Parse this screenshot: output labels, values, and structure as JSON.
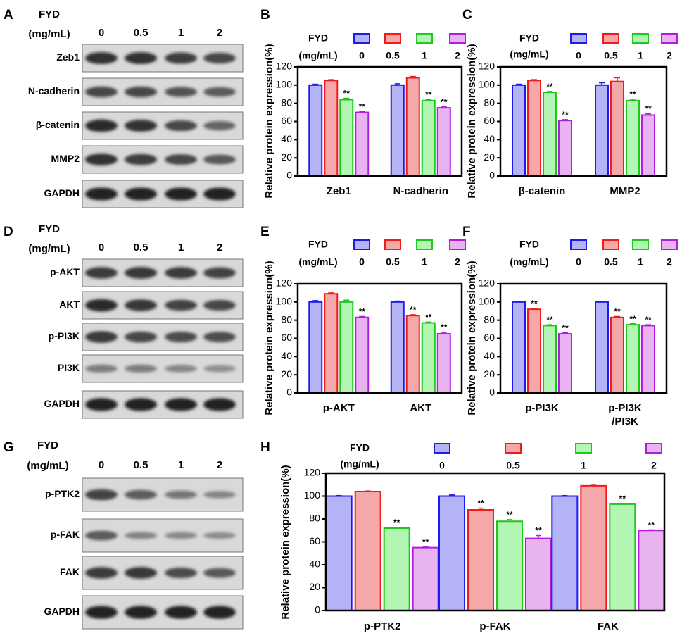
{
  "colors": {
    "series_fill": [
      "#b3b3f5",
      "#f5a8a8",
      "#b3f5b3",
      "#e8b3f0"
    ],
    "series_stroke": [
      "#1c1cf0",
      "#f01c1c",
      "#1cc81c",
      "#b01ce0"
    ]
  },
  "blot_panels": [
    {
      "letter": "A",
      "header": [
        "FYD",
        "(mg/mL)"
      ],
      "doses": [
        "0",
        "0.5",
        "1",
        "2"
      ],
      "rows": [
        {
          "label": "Zeb1",
          "bands": [
            0.85,
            0.85,
            0.78,
            0.72
          ]
        },
        {
          "label": "N-cadherin",
          "bands": [
            0.72,
            0.72,
            0.65,
            0.6
          ]
        },
        {
          "label": "β-catenin",
          "bands": [
            0.9,
            0.85,
            0.72,
            0.55
          ]
        },
        {
          "label": "MMP2",
          "bands": [
            0.85,
            0.78,
            0.72,
            0.62
          ]
        },
        {
          "label": "GAPDH",
          "bands": [
            0.95,
            0.95,
            0.95,
            0.95
          ]
        }
      ]
    },
    {
      "letter": "D",
      "header": [
        "FYD",
        "(mg/mL)"
      ],
      "doses": [
        "0",
        "0.5",
        "1",
        "2"
      ],
      "rows": [
        {
          "label": "p-AKT",
          "bands": [
            0.8,
            0.82,
            0.8,
            0.75
          ]
        },
        {
          "label": "AKT",
          "bands": [
            0.9,
            0.82,
            0.75,
            0.72
          ]
        },
        {
          "label": "p-PI3K",
          "bands": [
            0.8,
            0.72,
            0.7,
            0.68
          ]
        },
        {
          "label": "PI3K",
          "bands": [
            0.4,
            0.4,
            0.35,
            0.3
          ]
        },
        {
          "label": "GAPDH",
          "bands": [
            0.95,
            0.95,
            0.95,
            0.95
          ]
        }
      ]
    },
    {
      "letter": "G",
      "header": [
        "FYD",
        "(mg/mL)"
      ],
      "doses": [
        "0",
        "0.5",
        "1",
        "2"
      ],
      "rows": [
        {
          "label": "p-PTK2",
          "bands": [
            0.75,
            0.6,
            0.45,
            0.35
          ]
        },
        {
          "label": "p-FAK",
          "bands": [
            0.6,
            0.35,
            0.32,
            0.3
          ]
        },
        {
          "label": "FAK",
          "bands": [
            0.8,
            0.82,
            0.7,
            0.62
          ]
        },
        {
          "label": "GAPDH",
          "bands": [
            0.95,
            0.95,
            0.95,
            0.95
          ]
        }
      ]
    }
  ],
  "chart_data": [
    {
      "letter": "B",
      "type": "bar",
      "ylabel": "Relative protein expression(%)",
      "ylim": [
        0,
        120
      ],
      "yticks": [
        0,
        20,
        40,
        60,
        80,
        100,
        120
      ],
      "legend_title": [
        "FYD",
        "(mg/mL)"
      ],
      "series_names": [
        "0",
        "0.5",
        "1",
        "2"
      ],
      "groups": [
        {
          "labels": [
            "Zeb1"
          ],
          "values": [
            100,
            105,
            84,
            70
          ],
          "errors": [
            1,
            1,
            1.5,
            1
          ],
          "sig": [
            "",
            "",
            "**",
            "**"
          ]
        },
        {
          "labels": [
            "N-cadherin"
          ],
          "values": [
            100,
            108,
            83,
            75
          ],
          "errors": [
            1.5,
            1.5,
            1,
            1
          ],
          "sig": [
            "",
            "",
            "**",
            "**"
          ]
        }
      ]
    },
    {
      "letter": "C",
      "type": "bar",
      "ylabel": "Relative protein expression(%)",
      "ylim": [
        0,
        120
      ],
      "yticks": [
        0,
        20,
        40,
        60,
        80,
        100,
        120
      ],
      "legend_title": [
        "FYD",
        "(mg/mL)"
      ],
      "series_names": [
        "0",
        "0.5",
        "1",
        "2"
      ],
      "groups": [
        {
          "labels": [
            "β-catenin"
          ],
          "values": [
            100,
            105,
            92,
            61
          ],
          "errors": [
            1,
            1,
            1,
            1
          ],
          "sig": [
            "",
            "",
            "**",
            "**"
          ]
        },
        {
          "labels": [
            "MMP2"
          ],
          "values": [
            100,
            104,
            83,
            67
          ],
          "errors": [
            2.5,
            4,
            1.5,
            1.5
          ],
          "sig": [
            "",
            "",
            "**",
            "**"
          ]
        }
      ]
    },
    {
      "letter": "E",
      "type": "bar",
      "ylabel": "Relative protein expression(%)",
      "ylim": [
        0,
        120
      ],
      "yticks": [
        0,
        20,
        40,
        60,
        80,
        100,
        120
      ],
      "legend_title": [
        "FYD",
        "(mg/mL)"
      ],
      "series_names": [
        "0",
        "0.5",
        "1",
        "2"
      ],
      "groups": [
        {
          "labels": [
            "p-AKT"
          ],
          "values": [
            100,
            109,
            100,
            83
          ],
          "errors": [
            1.5,
            1,
            2,
            1
          ],
          "sig": [
            "",
            "",
            "",
            "**"
          ]
        },
        {
          "labels": [
            "AKT"
          ],
          "values": [
            100,
            85,
            77,
            65
          ],
          "errors": [
            1,
            1,
            1,
            1.5
          ],
          "sig": [
            "",
            "**",
            "**",
            "**"
          ]
        }
      ]
    },
    {
      "letter": "F",
      "type": "bar",
      "ylabel": "Relative protein expression(%)",
      "ylim": [
        0,
        120
      ],
      "yticks": [
        0,
        20,
        40,
        60,
        80,
        100,
        120
      ],
      "legend_title": [
        "FYD",
        "(mg/mL)"
      ],
      "series_names": [
        "0",
        "0.5",
        "1",
        "2"
      ],
      "groups": [
        {
          "labels": [
            "p-PI3K"
          ],
          "values": [
            100,
            92,
            74,
            65
          ],
          "errors": [
            0.5,
            1,
            1,
            1
          ],
          "sig": [
            "",
            "**",
            "**",
            "**"
          ]
        },
        {
          "labels": [
            "p-PI3K",
            "/PI3K"
          ],
          "values": [
            100,
            83,
            75,
            74
          ],
          "errors": [
            0.5,
            1,
            1,
            1
          ],
          "sig": [
            "",
            "**",
            "**",
            "**"
          ]
        }
      ]
    },
    {
      "letter": "H",
      "type": "bar",
      "ylabel": "Relative protein expression(%)",
      "ylim": [
        0,
        120
      ],
      "yticks": [
        0,
        20,
        40,
        60,
        80,
        100,
        120
      ],
      "legend_title": [
        "FYD",
        "(mg/mL)"
      ],
      "series_names": [
        "0",
        "0.5",
        "1",
        "2"
      ],
      "groups": [
        {
          "labels": [
            "p-PTK2"
          ],
          "values": [
            100,
            104,
            72,
            55
          ],
          "errors": [
            0.5,
            0.5,
            0.5,
            0.5
          ],
          "sig": [
            "",
            "",
            "**",
            "**"
          ]
        },
        {
          "labels": [
            "p-FAK"
          ],
          "values": [
            100,
            88,
            78,
            63
          ],
          "errors": [
            1,
            1.5,
            1.5,
            2.5
          ],
          "sig": [
            "",
            "**",
            "**",
            "**"
          ]
        },
        {
          "labels": [
            "FAK"
          ],
          "values": [
            100,
            109,
            93,
            70
          ],
          "errors": [
            0.5,
            0.5,
            0.5,
            0.5
          ],
          "sig": [
            "",
            "",
            "**",
            "**"
          ]
        }
      ]
    }
  ]
}
